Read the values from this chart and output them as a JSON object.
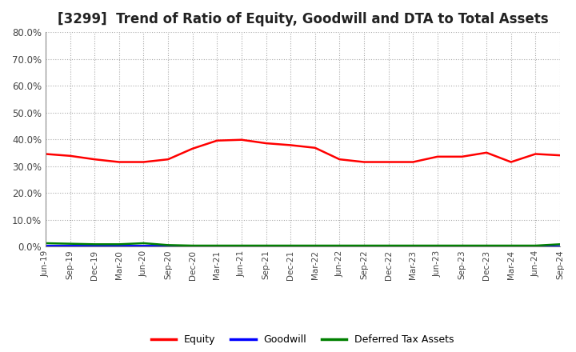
{
  "title": "[3299]  Trend of Ratio of Equity, Goodwill and DTA to Total Assets",
  "xlabels": [
    "Jun-19",
    "Sep-19",
    "Dec-19",
    "Mar-20",
    "Jun-20",
    "Sep-20",
    "Dec-20",
    "Mar-21",
    "Jun-21",
    "Sep-21",
    "Dec-21",
    "Mar-22",
    "Jun-22",
    "Sep-22",
    "Dec-22",
    "Mar-23",
    "Jun-23",
    "Sep-23",
    "Dec-23",
    "Mar-24",
    "Jun-24",
    "Sep-24"
  ],
  "equity": [
    34.5,
    33.8,
    32.5,
    31.5,
    31.5,
    32.5,
    36.5,
    39.5,
    39.8,
    38.5,
    37.8,
    36.8,
    32.5,
    31.5,
    31.5,
    31.5,
    33.5,
    33.5,
    35.0,
    31.5,
    34.5,
    34.0
  ],
  "goodwill": [
    0.2,
    0.2,
    0.2,
    0.2,
    0.2,
    0.2,
    0.05,
    0.05,
    0.05,
    0.05,
    0.05,
    0.05,
    0.05,
    0.05,
    0.05,
    0.05,
    0.05,
    0.05,
    0.05,
    0.05,
    0.05,
    0.05
  ],
  "dta": [
    1.2,
    1.0,
    0.8,
    0.8,
    1.2,
    0.5,
    0.3,
    0.3,
    0.3,
    0.3,
    0.3,
    0.3,
    0.3,
    0.3,
    0.3,
    0.3,
    0.3,
    0.3,
    0.3,
    0.3,
    0.3,
    0.8
  ],
  "equity_color": "#FF0000",
  "goodwill_color": "#0000FF",
  "dta_color": "#008000",
  "ylim": [
    0,
    80
  ],
  "yticks": [
    0,
    10,
    20,
    30,
    40,
    50,
    60,
    70,
    80
  ],
  "background_color": "#FFFFFF",
  "grid_color": "#AAAAAA",
  "title_fontsize": 12,
  "legend_labels": [
    "Equity",
    "Goodwill",
    "Deferred Tax Assets"
  ]
}
